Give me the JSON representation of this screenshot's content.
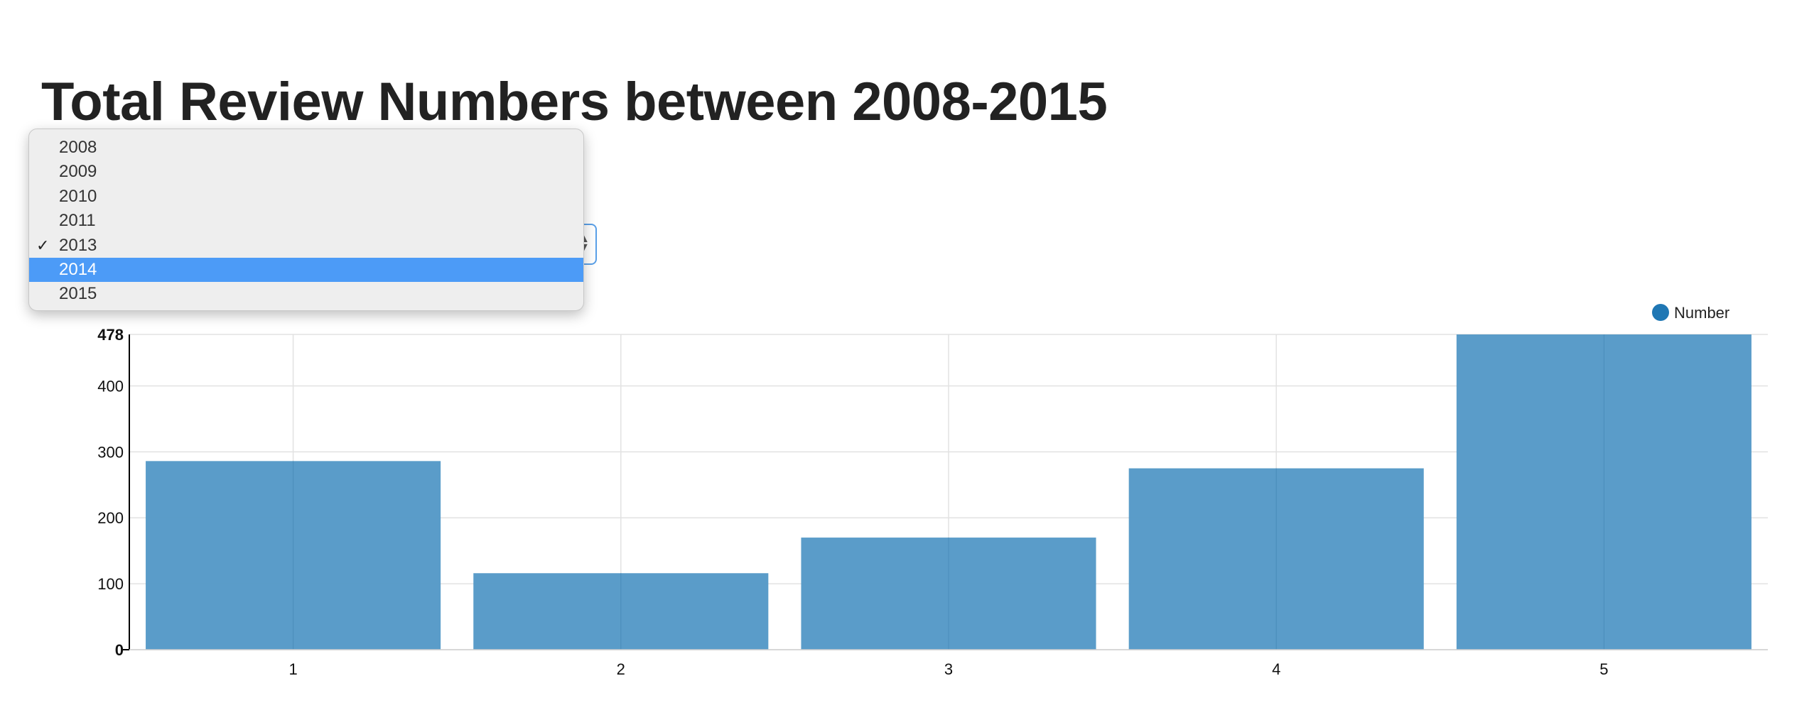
{
  "title": "Total Review Numbers between 2008-2015",
  "year_select": {
    "options": [
      "2008",
      "2009",
      "2010",
      "2011",
      "2013",
      "2014",
      "2015"
    ],
    "checked": "2013",
    "highlighted": "2014"
  },
  "chart_data": {
    "type": "bar",
    "categories": [
      "1",
      "2",
      "3",
      "4",
      "5"
    ],
    "series": [
      {
        "name": "Number",
        "values": [
          286,
          116,
          170,
          275,
          478
        ],
        "color": "#5599c7"
      }
    ],
    "legend_position": "top-right",
    "legend_marker_color": "#1f77b4",
    "ylim": [
      0,
      478
    ],
    "y_ticks": [
      0,
      100,
      200,
      300,
      400,
      478
    ],
    "grid": true
  }
}
